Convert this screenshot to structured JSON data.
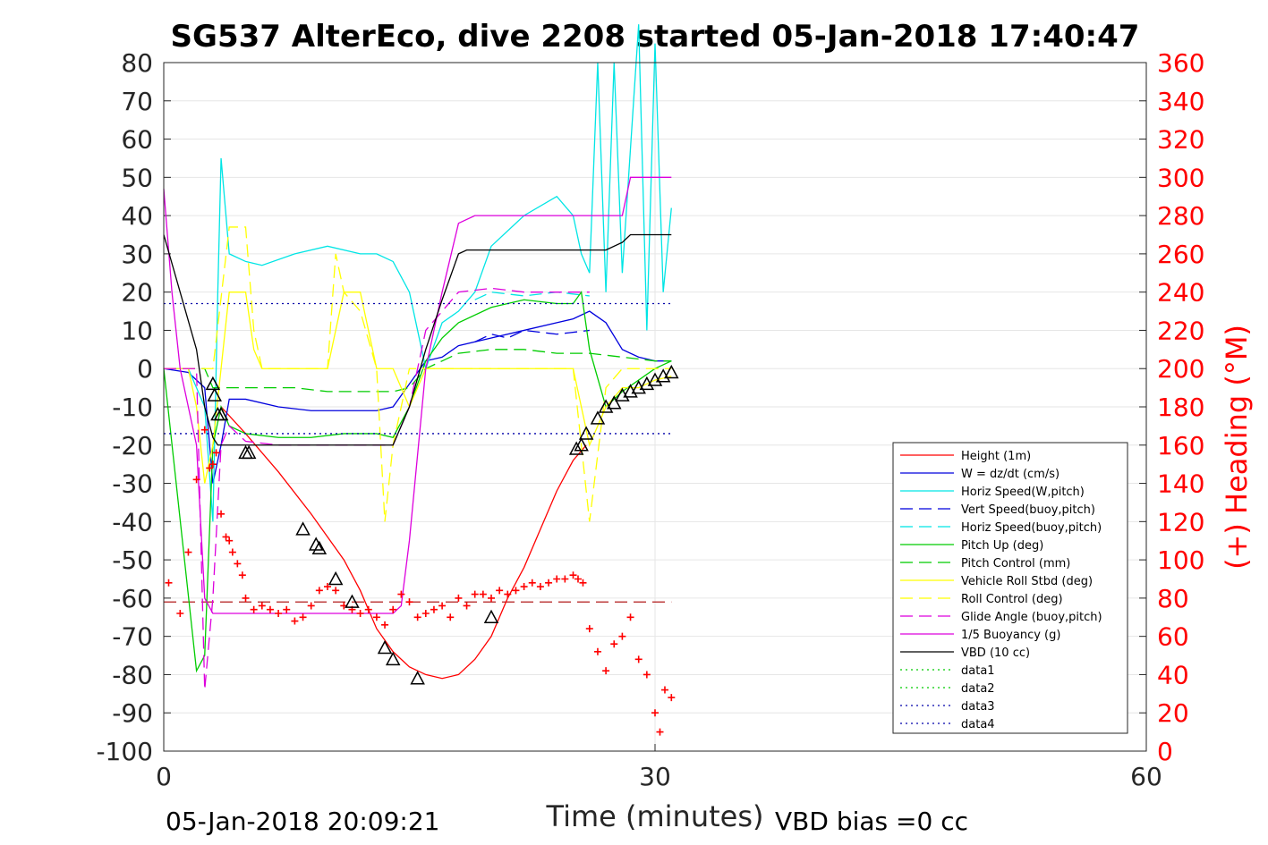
{
  "chart_data": {
    "type": "line",
    "title": "SG537 AlterEco, dive 2208 started 05-Jan-2018 17:40:47",
    "xlabel": "Time (minutes)",
    "ylabel_right": "(+) Heading (°M)",
    "xlim": [
      0,
      60
    ],
    "ylim": [
      -100,
      80
    ],
    "y2lim": [
      0,
      360
    ],
    "xticks": [
      "0",
      "30",
      "60"
    ],
    "yticks": [
      "80",
      "70",
      "60",
      "50",
      "40",
      "30",
      "20",
      "10",
      "0",
      "-10",
      "-20",
      "-30",
      "-40",
      "-50",
      "-60",
      "-70",
      "-80",
      "-90",
      "-100"
    ],
    "y2ticks": [
      "360",
      "340",
      "320",
      "300",
      "280",
      "260",
      "240",
      "220",
      "200",
      "180",
      "160",
      "140",
      "120",
      "100",
      "80",
      "60",
      "40",
      "20",
      "0"
    ],
    "grid": true,
    "legend_position": "lower-right",
    "footer_left": "05-Jan-2018 20:09:21",
    "footer_right": "VBD bias =0 cc",
    "colors": {
      "axis_right": "#ff0000",
      "grid": "#e6e6e6"
    },
    "series": [
      {
        "name": "Height (1m)",
        "color": "#ff0000",
        "dash": "solid",
        "x": [
          3.5,
          5,
          7,
          9,
          11,
          12,
          13,
          14,
          15,
          16,
          17,
          18,
          19,
          20,
          21,
          22,
          23,
          24,
          25,
          25.8
        ],
        "y": [
          -10,
          -17,
          -27,
          -38,
          -50,
          -58,
          -68,
          -74,
          -78,
          -80,
          -81,
          -80,
          -76,
          -70,
          -60,
          -52,
          -42,
          -32,
          -24,
          -20
        ]
      },
      {
        "name": "W = dz/dt (cm/s)",
        "color": "#0000dd",
        "dash": "solid",
        "x": [
          0,
          1.5,
          2.5,
          3,
          3.5,
          4,
          5,
          7,
          9,
          11,
          13,
          14,
          15,
          16,
          17,
          18,
          20,
          22,
          24,
          25,
          26,
          27,
          28,
          29,
          30,
          31
        ],
        "y": [
          0,
          -1,
          -5,
          -30,
          -20,
          -8,
          -8,
          -10,
          -11,
          -11,
          -11,
          -10,
          -4,
          2,
          3,
          6,
          8,
          10,
          12,
          13,
          15,
          12,
          5,
          3,
          2,
          2
        ]
      },
      {
        "name": "Horiz Speed(W,pitch)",
        "color": "#00e5e5",
        "dash": "solid",
        "x": [
          0,
          1.5,
          2.5,
          3,
          3.3,
          3.5,
          4,
          5,
          6,
          8,
          10,
          12,
          13,
          14,
          15,
          15.5,
          16,
          17,
          18,
          19,
          20,
          22,
          24,
          25,
          25.5,
          26,
          26.5,
          27,
          27.5,
          28,
          29,
          29.5,
          30,
          30.5,
          31
        ],
        "y": [
          0,
          0,
          -10,
          -40,
          20,
          55,
          30,
          28,
          27,
          30,
          32,
          30,
          30,
          28,
          20,
          10,
          0,
          12,
          15,
          20,
          32,
          40,
          45,
          40,
          30,
          25,
          80,
          20,
          80,
          25,
          90,
          10,
          85,
          20,
          42
        ]
      },
      {
        "name": "Vert Speed(buoy,pitch)",
        "color": "#0000dd",
        "dash": "dashed",
        "x": [
          19,
          20,
          21,
          22,
          24,
          26
        ],
        "y": [
          7,
          9,
          8,
          10,
          9,
          10
        ]
      },
      {
        "name": "Horiz Speed(buoy,pitch)",
        "color": "#00e5e5",
        "dash": "dashed",
        "x": [
          19,
          20,
          22,
          24,
          26
        ],
        "y": [
          18,
          20,
          19,
          20,
          19
        ]
      },
      {
        "name": "Pitch Up (deg)",
        "color": "#00cc00",
        "dash": "solid",
        "x": [
          0,
          2,
          2.5,
          3,
          3.5,
          4,
          5,
          7,
          9,
          11,
          13,
          14,
          15,
          16,
          17,
          18,
          20,
          22,
          24,
          25,
          25.5,
          26,
          27,
          28,
          29,
          30,
          31
        ],
        "y": [
          0,
          -79,
          -75,
          -20,
          -10,
          -15,
          -17,
          -18,
          -18,
          -17,
          -17,
          -18,
          -10,
          2,
          8,
          12,
          16,
          18,
          17,
          17,
          20,
          5,
          -10,
          -6,
          -3,
          0,
          2
        ]
      },
      {
        "name": "Pitch Control (mm)",
        "color": "#00cc00",
        "dash": "dashed",
        "x": [
          0,
          2.5,
          3,
          4,
          6,
          8,
          10,
          12,
          14,
          15,
          16,
          17,
          18,
          20,
          22,
          24,
          26,
          28,
          30,
          31
        ],
        "y": [
          0,
          0,
          -5,
          -5,
          -5,
          -5,
          -6,
          -6,
          -6,
          -5,
          0,
          2,
          4,
          5,
          5,
          4,
          4,
          3,
          2,
          2
        ]
      },
      {
        "name": "Vehicle Roll Stbd (deg)",
        "color": "#ffff00",
        "dash": "solid",
        "x": [
          0,
          1.5,
          2,
          2.5,
          3,
          3.5,
          4,
          5,
          5.5,
          6,
          8,
          9,
          10,
          10.5,
          11,
          12,
          13,
          14,
          15,
          16,
          18,
          20,
          22,
          24,
          25,
          26,
          27,
          28,
          29,
          30,
          31
        ],
        "y": [
          0,
          0,
          -10,
          -30,
          -20,
          0,
          20,
          20,
          5,
          0,
          0,
          0,
          0,
          10,
          20,
          20,
          0,
          0,
          -10,
          0,
          0,
          0,
          0,
          0,
          0,
          -20,
          -10,
          -5,
          -5,
          -3,
          -2
        ]
      },
      {
        "name": "Roll Control (deg)",
        "color": "#ffff00",
        "dash": "dashed",
        "x": [
          0,
          2,
          3,
          4,
          5,
          5.5,
          6,
          8,
          10,
          10.5,
          11,
          12,
          13,
          13.5,
          14,
          15,
          16,
          20,
          24,
          25,
          26,
          27,
          28,
          30,
          31
        ],
        "y": [
          0,
          0,
          0,
          37,
          37,
          10,
          0,
          0,
          0,
          30,
          20,
          15,
          0,
          -40,
          -20,
          0,
          0,
          0,
          0,
          0,
          -40,
          -5,
          0,
          0,
          0
        ]
      },
      {
        "name": "Glide Angle (buoy,pitch)",
        "color": "#dd00dd",
        "dash": "dashed",
        "x": [
          0,
          2,
          2.5,
          3,
          3.5,
          4,
          5,
          7,
          9,
          11,
          13,
          14,
          15,
          16,
          17,
          18,
          20,
          22,
          24,
          26
        ],
        "y": [
          0,
          0,
          -84,
          -60,
          -20,
          -15,
          -19,
          -20,
          -20,
          -20,
          -20,
          -20,
          -10,
          10,
          15,
          20,
          21,
          20,
          20,
          20
        ]
      },
      {
        "name": "1/5 Buoyancy (g)",
        "color": "#dd00dd",
        "dash": "solid",
        "x": [
          0,
          0.5,
          1,
          2,
          2.5,
          3,
          3.3,
          4,
          6,
          8,
          10,
          12,
          13,
          14,
          14.5,
          15,
          16,
          17,
          18,
          19,
          20,
          22,
          24,
          26,
          27,
          28,
          28.5,
          29,
          30,
          31
        ],
        "y": [
          47,
          20,
          0,
          -20,
          -60,
          -64,
          -64,
          -64,
          -64,
          -64,
          -64,
          -64,
          -64,
          -64,
          -62,
          -45,
          0,
          20,
          38,
          40,
          40,
          40,
          40,
          40,
          40,
          40,
          50,
          50,
          50,
          50
        ]
      },
      {
        "name": "VBD (10 cc)",
        "color": "#000000",
        "dash": "solid",
        "x": [
          0,
          1,
          2,
          2.5,
          3,
          3.3,
          4,
          6,
          8,
          10,
          12,
          14,
          15,
          16,
          17,
          18,
          18.5,
          19,
          20,
          22,
          24,
          26,
          27,
          28,
          28.5,
          29,
          30,
          31
        ],
        "y": [
          35,
          20,
          5,
          -10,
          -18,
          -20,
          -20,
          -20,
          -20,
          -20,
          -20,
          -20,
          -10,
          5,
          18,
          30,
          31,
          31,
          31,
          31,
          31,
          31,
          31,
          33,
          35,
          35,
          35,
          35
        ]
      },
      {
        "name": "data1",
        "color": "#00cc00",
        "dash": "dotted",
        "x": [],
        "y": []
      },
      {
        "name": "data2",
        "color": "#00cc00",
        "dash": "dotted",
        "x": [],
        "y": []
      },
      {
        "name": "data3",
        "color": "#0000aa",
        "dash": "dotted",
        "x": [
          0,
          31
        ],
        "y": [
          17,
          17
        ]
      },
      {
        "name": "data4",
        "color": "#0000aa",
        "dash": "dotted",
        "x": [
          0,
          31
        ],
        "y": [
          -17,
          -17
        ]
      }
    ],
    "reference_line": {
      "color": "#aa0000",
      "dash": "dashed",
      "x": [
        0,
        31
      ],
      "y": [
        -61,
        -61
      ]
    },
    "heading_points": {
      "color": "#ff0000",
      "x": [
        0.3,
        1,
        1.5,
        2,
        2.5,
        2.8,
        3,
        3.2,
        3.5,
        3.8,
        4,
        4.2,
        4.5,
        4.8,
        5,
        5.5,
        6,
        6.5,
        7,
        7.5,
        8,
        8.5,
        9,
        9.5,
        10,
        10.5,
        11,
        11.5,
        12,
        12.5,
        13,
        13.5,
        14,
        14.5,
        15,
        15.5,
        16,
        16.5,
        17,
        17.5,
        18,
        18.5,
        19,
        19.5,
        20,
        20.5,
        21,
        21.5,
        22,
        22.5,
        23,
        23.5,
        24,
        24.5,
        25,
        25.3,
        25.6,
        26,
        26.5,
        27,
        27.5,
        28,
        28.5,
        29,
        29.5,
        30,
        30.3,
        30.6,
        31
      ],
      "y": [
        88,
        72,
        104,
        142,
        168,
        148,
        150,
        156,
        124,
        112,
        110,
        104,
        98,
        92,
        80,
        74,
        76,
        74,
        72,
        74,
        68,
        70,
        76,
        84,
        86,
        84,
        76,
        74,
        72,
        74,
        70,
        66,
        74,
        82,
        78,
        70,
        72,
        74,
        76,
        70,
        80,
        76,
        82,
        82,
        80,
        84,
        82,
        84,
        86,
        88,
        86,
        88,
        90,
        90,
        92,
        90,
        88,
        64,
        52,
        42,
        56,
        60,
        70,
        48,
        40,
        20,
        10,
        32,
        28
      ]
    },
    "marker_points": {
      "symbol": "triangle",
      "color": "#000000",
      "x": [
        3,
        3.1,
        3.3,
        3.5,
        5,
        5.2,
        8.5,
        9.3,
        9.5,
        10.5,
        11.5,
        13.5,
        14,
        15.5,
        20,
        25.2,
        25.5,
        25.8,
        26.5,
        27,
        27.5,
        28,
        28.5,
        29,
        29.5,
        30,
        30.5,
        31
      ],
      "y": [
        -4,
        -7,
        -12,
        -12,
        -22,
        -22,
        -42,
        -46,
        -47,
        -55,
        -61,
        -73,
        -76,
        -81,
        -65,
        -21,
        -20,
        -17,
        -13,
        -10,
        -9,
        -7,
        -6,
        -5,
        -4,
        -3,
        -2,
        -1
      ]
    }
  }
}
